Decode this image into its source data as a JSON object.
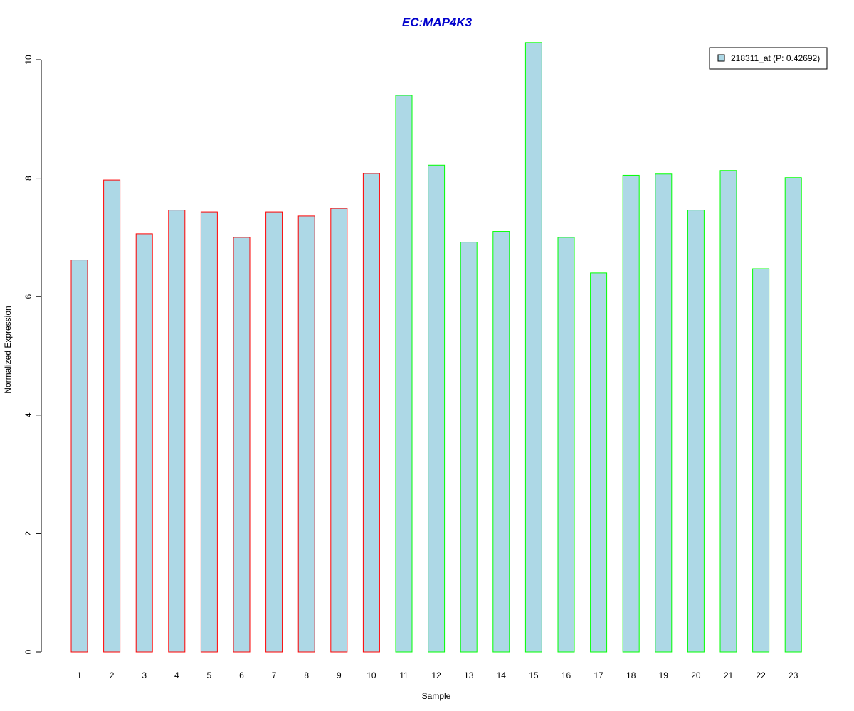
{
  "chart_data": {
    "type": "bar",
    "title": "EC:MAP4K3",
    "xlabel": "Sample",
    "ylabel": "Normalized Expression",
    "categories": [
      "1",
      "2",
      "3",
      "4",
      "5",
      "6",
      "7",
      "8",
      "9",
      "10",
      "11",
      "12",
      "13",
      "14",
      "15",
      "16",
      "17",
      "18",
      "19",
      "20",
      "21",
      "22",
      "23"
    ],
    "series": [
      {
        "name": "218311_at (P: 0.42692)",
        "values": [
          6.62,
          7.97,
          7.06,
          7.46,
          7.43,
          7.0,
          7.43,
          7.36,
          7.49,
          8.08,
          9.4,
          8.22,
          6.92,
          7.1,
          10.29,
          7.0,
          6.4,
          8.05,
          8.07,
          7.46,
          8.13,
          6.47,
          8.01
        ]
      }
    ],
    "groups": [
      "red",
      "red",
      "red",
      "red",
      "red",
      "red",
      "red",
      "red",
      "red",
      "red",
      "green",
      "green",
      "green",
      "green",
      "green",
      "green",
      "green",
      "green",
      "green",
      "green",
      "green",
      "green",
      "green"
    ],
    "ylim": [
      0,
      10.3
    ],
    "yticks": [
      0,
      2,
      4,
      6,
      8,
      10
    ],
    "grid": false,
    "legend_position": "top-right",
    "colors": {
      "bar_fill": "#add8e6",
      "red": "#ff0000",
      "green": "#00ff00",
      "title": "#0000cc"
    }
  }
}
